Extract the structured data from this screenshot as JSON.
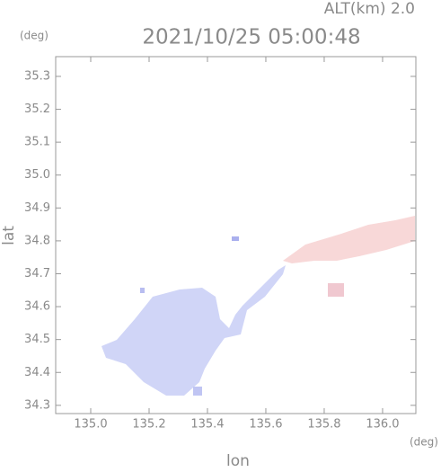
{
  "chart_data": {
    "type": "map",
    "title": "2021/10/25 05:00:48",
    "subtitle": "ALT(km) 2.0",
    "xlabel": "lon",
    "ylabel": "lat",
    "xunit": "(deg)",
    "yunit": "(deg)",
    "xlim": [
      134.88,
      136.114
    ],
    "ylim": [
      34.275,
      35.36
    ],
    "xticks": [
      {
        "value": 135,
        "label": "135.0"
      },
      135.2,
      135.4,
      135.6,
      135.8,
      {
        "value": 136,
        "label": "136.0"
      }
    ],
    "yticks": [
      34.3,
      34.4,
      34.5,
      34.6,
      34.7,
      34.8,
      34.9,
      {
        "value": 35,
        "label": "35.0"
      },
      35.1,
      35.2,
      35.3
    ]
  }
}
